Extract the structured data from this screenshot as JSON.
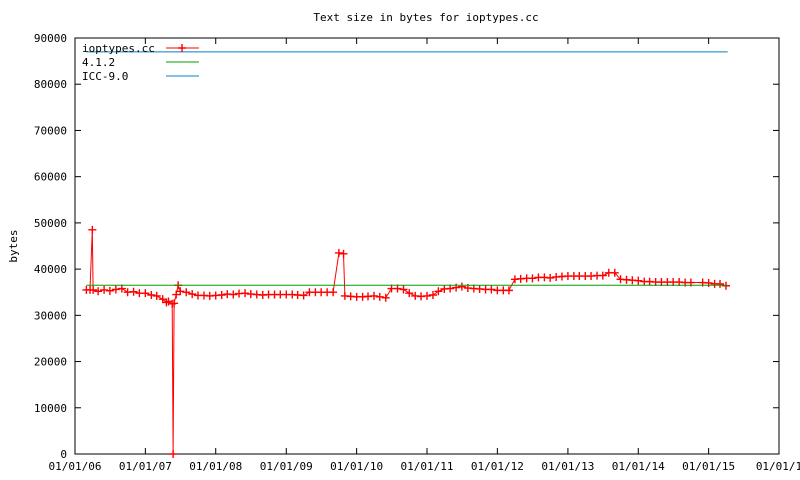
{
  "chart_data": {
    "type": "line",
    "title": "Text size in bytes for ioptypes.cc",
    "xlabel": "",
    "ylabel": "bytes",
    "ylim": [
      0,
      90000
    ],
    "yticks": [
      0,
      10000,
      20000,
      30000,
      40000,
      50000,
      60000,
      70000,
      80000,
      90000
    ],
    "xlim": [
      "2006-01-01",
      "2016-01-01"
    ],
    "xticks": [
      {
        "date": "2006-01-01",
        "label": "01/01/06"
      },
      {
        "date": "2007-01-01",
        "label": "01/01/07"
      },
      {
        "date": "2008-01-01",
        "label": "01/01/08"
      },
      {
        "date": "2009-01-01",
        "label": "01/01/09"
      },
      {
        "date": "2010-01-01",
        "label": "01/01/10"
      },
      {
        "date": "2011-01-01",
        "label": "01/01/11"
      },
      {
        "date": "2012-01-01",
        "label": "01/01/12"
      },
      {
        "date": "2013-01-01",
        "label": "01/01/13"
      },
      {
        "date": "2014-01-01",
        "label": "01/01/14"
      },
      {
        "date": "2015-01-01",
        "label": "01/01/15"
      },
      {
        "date": "2016-01-01",
        "label": "01/01/1"
      }
    ],
    "grid": false,
    "legend_position": "top-left",
    "series": [
      {
        "name": "ioptypes.cc",
        "color": "#ff0000",
        "style": "line-points",
        "points": [
          [
            "2006-03-01",
            35500
          ],
          [
            "2006-03-20",
            35500
          ],
          [
            "2006-04-01",
            48500
          ],
          [
            "2006-04-05",
            35500
          ],
          [
            "2006-05-01",
            35200
          ],
          [
            "2006-06-01",
            35500
          ],
          [
            "2006-07-01",
            35300
          ],
          [
            "2006-08-01",
            35600
          ],
          [
            "2006-09-01",
            35800
          ],
          [
            "2006-10-01",
            35000
          ],
          [
            "2006-11-01",
            35100
          ],
          [
            "2006-12-01",
            34800
          ],
          [
            "2007-01-01",
            34800
          ],
          [
            "2007-02-01",
            34400
          ],
          [
            "2007-03-01",
            34200
          ],
          [
            "2007-04-01",
            33500
          ],
          [
            "2007-04-20",
            32800
          ],
          [
            "2007-05-01",
            33000
          ],
          [
            "2007-05-20",
            32500
          ],
          [
            "2007-05-25",
            0
          ],
          [
            "2007-05-30",
            32600
          ],
          [
            "2007-06-10",
            34500
          ],
          [
            "2007-06-20",
            36500
          ],
          [
            "2007-07-01",
            35200
          ],
          [
            "2007-08-01",
            35000
          ],
          [
            "2007-09-01",
            34600
          ],
          [
            "2007-10-01",
            34300
          ],
          [
            "2007-11-01",
            34300
          ],
          [
            "2007-12-01",
            34200
          ],
          [
            "2008-01-01",
            34300
          ],
          [
            "2008-02-01",
            34400
          ],
          [
            "2008-03-01",
            34600
          ],
          [
            "2008-04-01",
            34500
          ],
          [
            "2008-05-01",
            34700
          ],
          [
            "2008-06-01",
            34800
          ],
          [
            "2008-07-01",
            34600
          ],
          [
            "2008-08-01",
            34500
          ],
          [
            "2008-09-01",
            34400
          ],
          [
            "2008-10-01",
            34500
          ],
          [
            "2008-11-01",
            34500
          ],
          [
            "2008-12-01",
            34500
          ],
          [
            "2009-01-01",
            34500
          ],
          [
            "2009-02-01",
            34500
          ],
          [
            "2009-03-01",
            34400
          ],
          [
            "2009-04-01",
            34300
          ],
          [
            "2009-05-01",
            35000
          ],
          [
            "2009-06-01",
            35000
          ],
          [
            "2009-07-01",
            35000
          ],
          [
            "2009-08-01",
            35000
          ],
          [
            "2009-09-01",
            35000
          ],
          [
            "2009-10-01",
            43500
          ],
          [
            "2009-10-25",
            43300
          ],
          [
            "2009-11-01",
            34200
          ],
          [
            "2009-12-01",
            34100
          ],
          [
            "2010-01-01",
            34000
          ],
          [
            "2010-02-01",
            34000
          ],
          [
            "2010-03-01",
            34100
          ],
          [
            "2010-04-01",
            34200
          ],
          [
            "2010-05-01",
            34000
          ],
          [
            "2010-06-01",
            33800
          ],
          [
            "2010-07-01",
            35800
          ],
          [
            "2010-08-01",
            35800
          ],
          [
            "2010-09-01",
            35600
          ],
          [
            "2010-10-01",
            34800
          ],
          [
            "2010-11-01",
            34200
          ],
          [
            "2010-12-01",
            34100
          ],
          [
            "2011-01-01",
            34200
          ],
          [
            "2011-02-01",
            34400
          ],
          [
            "2011-03-01",
            35200
          ],
          [
            "2011-04-01",
            35700
          ],
          [
            "2011-05-01",
            35800
          ],
          [
            "2011-06-01",
            36000
          ],
          [
            "2011-07-01",
            36200
          ],
          [
            "2011-08-01",
            35900
          ],
          [
            "2011-09-01",
            35800
          ],
          [
            "2011-10-01",
            35700
          ],
          [
            "2011-11-01",
            35600
          ],
          [
            "2011-12-01",
            35600
          ],
          [
            "2012-01-01",
            35400
          ],
          [
            "2012-02-01",
            35400
          ],
          [
            "2012-03-01",
            35400
          ],
          [
            "2012-04-01",
            37800
          ],
          [
            "2012-05-01",
            37900
          ],
          [
            "2012-06-01",
            38000
          ],
          [
            "2012-07-01",
            38000
          ],
          [
            "2012-08-01",
            38200
          ],
          [
            "2012-09-01",
            38200
          ],
          [
            "2012-10-01",
            38100
          ],
          [
            "2012-11-01",
            38300
          ],
          [
            "2012-12-01",
            38400
          ],
          [
            "2013-01-01",
            38500
          ],
          [
            "2013-02-01",
            38500
          ],
          [
            "2013-03-01",
            38500
          ],
          [
            "2013-04-01",
            38500
          ],
          [
            "2013-05-01",
            38500
          ],
          [
            "2013-06-01",
            38600
          ],
          [
            "2013-07-01",
            38600
          ],
          [
            "2013-08-01",
            39200
          ],
          [
            "2013-09-01",
            39200
          ],
          [
            "2013-10-01",
            37800
          ],
          [
            "2013-11-01",
            37700
          ],
          [
            "2013-12-01",
            37600
          ],
          [
            "2014-01-01",
            37500
          ],
          [
            "2014-02-01",
            37300
          ],
          [
            "2014-03-01",
            37300
          ],
          [
            "2014-04-01",
            37200
          ],
          [
            "2014-05-01",
            37200
          ],
          [
            "2014-06-01",
            37200
          ],
          [
            "2014-07-01",
            37200
          ],
          [
            "2014-08-01",
            37200
          ],
          [
            "2014-09-01",
            37100
          ],
          [
            "2014-10-01",
            37100
          ],
          [
            "2014-12-01",
            37100
          ],
          [
            "2015-01-01",
            37000
          ],
          [
            "2015-02-01",
            36800
          ],
          [
            "2015-03-01",
            36800
          ],
          [
            "2015-04-01",
            36400
          ]
        ]
      },
      {
        "name": "4.1.2",
        "color": "#00a000",
        "style": "line",
        "points": [
          [
            "2006-03-01",
            36500
          ],
          [
            "2015-04-10",
            36500
          ]
        ]
      },
      {
        "name": "ICC-9.0",
        "color": "#0080c0",
        "style": "line",
        "points": [
          [
            "2006-03-01",
            87000
          ],
          [
            "2015-04-10",
            87000
          ]
        ]
      }
    ]
  }
}
